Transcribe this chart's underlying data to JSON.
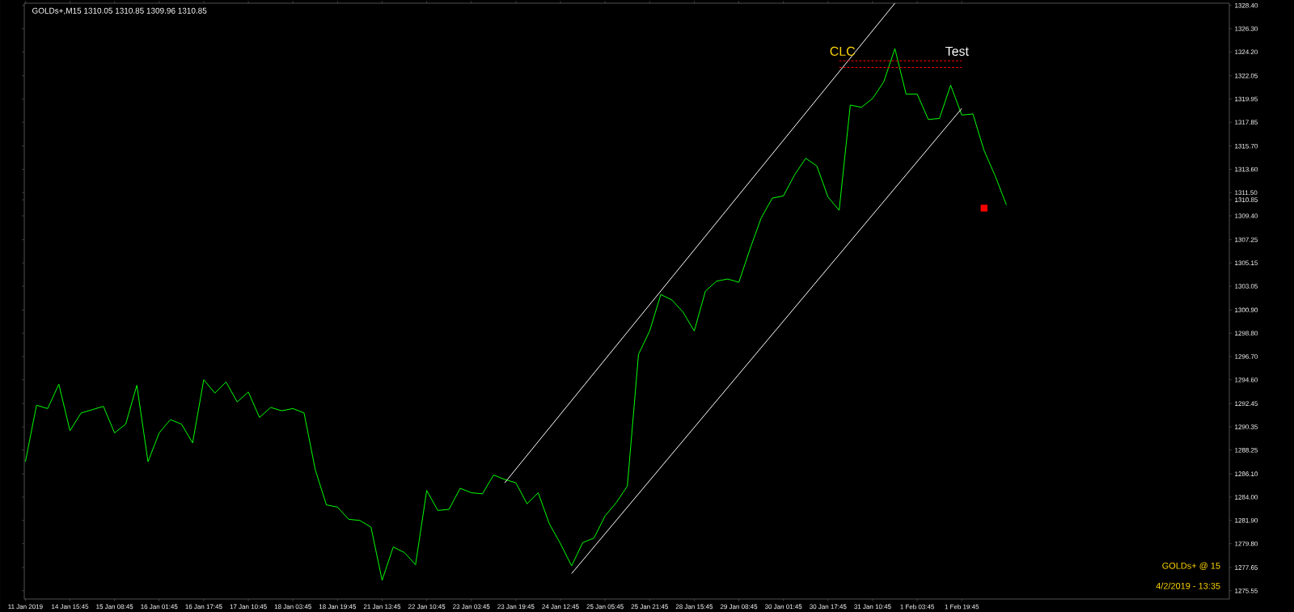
{
  "chart_data": {
    "type": "line",
    "title": "GOLDs+,M15  1310.05 1310.85 1309.96 1310.85",
    "ylim": [
      1274.8,
      1328.6
    ],
    "categories": [
      "11 Jan 2019",
      null,
      null,
      null,
      "14 Jan 15:45",
      null,
      null,
      null,
      "15 Jan 08:45",
      null,
      null,
      null,
      "16 Jan 01:45",
      null,
      null,
      null,
      "16 Jan 17:45",
      null,
      null,
      null,
      "17 Jan 10:45",
      null,
      null,
      null,
      "18 Jan 03:45",
      null,
      null,
      null,
      "18 Jan 19:45",
      null,
      null,
      null,
      "21 Jan 13:45",
      null,
      null,
      null,
      "22 Jan 10:45",
      null,
      null,
      null,
      "23 Jan 03:45",
      null,
      null,
      null,
      "23 Jan 19:45",
      null,
      null,
      null,
      "24 Jan 12:45",
      null,
      null,
      null,
      "25 Jan 05:45",
      null,
      null,
      null,
      "25 Jan 21:45",
      null,
      null,
      null,
      "28 Jan 15:45",
      null,
      null,
      null,
      "29 Jan 08:45",
      null,
      null,
      null,
      "30 Jan 01:45",
      null,
      null,
      null,
      "30 Jan 17:45",
      null,
      null,
      null,
      "31 Jan 10:45",
      null,
      null,
      null,
      "1 Feb 03:45",
      null,
      null,
      null,
      "1 Feb 19:45",
      null,
      null,
      null,
      null,
      null,
      null,
      null,
      null,
      null,
      null,
      null,
      null,
      null,
      null,
      null,
      null,
      null,
      null,
      null,
      null,
      null,
      null,
      null,
      null
    ],
    "yticks": [
      {
        "value": 1328.4,
        "label": "1328.40"
      },
      {
        "value": 1326.3,
        "label": "1326.30"
      },
      {
        "value": 1324.2,
        "label": "1324.20"
      },
      {
        "value": 1322.05,
        "label": "1322.05"
      },
      {
        "value": 1319.95,
        "label": "1319.95"
      },
      {
        "value": 1317.85,
        "label": "1317.85"
      },
      {
        "value": 1315.7,
        "label": "1315.70"
      },
      {
        "value": 1313.6,
        "label": "1313.60"
      },
      {
        "value": 1311.5,
        "label": "1311.50"
      },
      {
        "value": 1310.85,
        "label": "1310.85"
      },
      {
        "value": 1309.4,
        "label": "1309.40"
      },
      {
        "value": 1307.25,
        "label": "1307.25"
      },
      {
        "value": 1305.15,
        "label": "1305.15"
      },
      {
        "value": 1303.05,
        "label": "1303.05"
      },
      {
        "value": 1300.9,
        "label": "1300.90"
      },
      {
        "value": 1298.8,
        "label": "1298.80"
      },
      {
        "value": 1296.7,
        "label": "1296.70"
      },
      {
        "value": 1294.6,
        "label": "1294.60"
      },
      {
        "value": 1292.45,
        "label": "1292.45"
      },
      {
        "value": 1290.35,
        "label": "1290.35"
      },
      {
        "value": 1288.25,
        "label": "1288.25"
      },
      {
        "value": 1286.1,
        "label": "1286.10"
      },
      {
        "value": 1284.0,
        "label": "1284.00"
      },
      {
        "value": 1281.9,
        "label": "1281.90"
      },
      {
        "value": 1279.8,
        "label": "1279.80"
      },
      {
        "value": 1277.65,
        "label": "1277.65"
      },
      {
        "value": 1275.55,
        "label": "1275.55"
      }
    ],
    "series": [
      {
        "color": "#00ff00",
        "values": [
          1287.2,
          1292.3,
          1292.0,
          1294.2,
          1290.0,
          1291.6,
          1291.9,
          1292.2,
          1289.8,
          1290.6,
          1294.1,
          1287.2,
          1289.8,
          1291.0,
          1290.6,
          1288.9,
          1294.6,
          1293.4,
          1294.4,
          1292.6,
          1293.5,
          1291.2,
          1292.1,
          1291.8,
          1292.0,
          1291.6,
          1286.5,
          1283.3,
          1283.1,
          1282.0,
          1281.9,
          1281.3,
          1276.5,
          1279.5,
          1279.0,
          1277.9,
          1284.6,
          1282.8,
          1282.9,
          1284.8,
          1284.4,
          1284.3,
          1286.0,
          1285.6,
          1285.3,
          1283.4,
          1284.4,
          1281.6,
          1279.8,
          1277.8,
          1279.9,
          1280.3,
          1282.3,
          1283.5,
          1285.0,
          1296.9,
          1299.0,
          1302.3,
          1301.8,
          1300.7,
          1299.0,
          1302.6,
          1303.5,
          1303.7,
          1303.4,
          1306.4,
          1309.2,
          1311.0,
          1311.2,
          1313.1,
          1314.6,
          1313.9,
          1311.1,
          1309.9,
          1319.4,
          1319.2,
          1320.0,
          1321.5,
          1324.5,
          1320.4,
          1320.4,
          1318.1,
          1318.2,
          1321.2,
          1318.5,
          1318.6,
          1315.3,
          1313.0,
          1310.4,
          null,
          null,
          null,
          null,
          null,
          null,
          null,
          null,
          null,
          null,
          null,
          null,
          null,
          null,
          null,
          null,
          null,
          null,
          null,
          null
        ]
      },
      {
        "color": "#ffffff",
        "values": [
          null,
          null,
          null,
          null,
          null,
          null,
          null,
          null,
          null,
          null,
          null,
          null,
          null,
          null,
          null,
          null,
          null,
          null,
          null,
          null,
          null,
          null,
          null,
          null,
          null,
          null,
          null,
          null,
          null,
          null,
          null,
          null,
          null,
          null,
          null,
          null,
          null,
          null,
          null,
          null,
          null,
          null,
          null,
          1285.3,
          null,
          null,
          null,
          null,
          null,
          null,
          null,
          null,
          null,
          null,
          null,
          null,
          null,
          null,
          null,
          null,
          null,
          null,
          null,
          null,
          null,
          null,
          null,
          null,
          null,
          null,
          null,
          null,
          null,
          null,
          null,
          null,
          null,
          null,
          1328.6,
          null,
          null,
          null,
          null,
          null,
          null,
          null,
          null,
          null,
          null,
          null,
          null,
          null,
          null,
          null,
          null,
          null,
          null,
          null,
          null,
          null,
          null,
          null,
          null,
          null,
          null,
          null,
          null,
          null,
          null
        ]
      },
      {
        "color": "#ffffff",
        "values": [
          null,
          null,
          null,
          null,
          null,
          null,
          null,
          null,
          null,
          null,
          null,
          null,
          null,
          null,
          null,
          null,
          null,
          null,
          null,
          null,
          null,
          null,
          null,
          null,
          null,
          null,
          null,
          null,
          null,
          null,
          null,
          null,
          null,
          null,
          null,
          null,
          null,
          null,
          null,
          null,
          null,
          null,
          null,
          null,
          null,
          null,
          null,
          null,
          null,
          1277.1,
          null,
          null,
          null,
          null,
          null,
          null,
          null,
          null,
          null,
          null,
          null,
          null,
          null,
          null,
          null,
          null,
          null,
          null,
          null,
          null,
          null,
          null,
          null,
          null,
          null,
          null,
          null,
          null,
          null,
          null,
          null,
          null,
          null,
          null,
          1319.1,
          null,
          null,
          null,
          null,
          null,
          null,
          null,
          null,
          null,
          null,
          null,
          null,
          null,
          null,
          null,
          null,
          null,
          null,
          null,
          null,
          null,
          null,
          null,
          null
        ]
      },
      {
        "color": "#ff0000",
        "line_style": "dashed",
        "values": [
          null,
          null,
          null,
          null,
          null,
          null,
          null,
          null,
          null,
          null,
          null,
          null,
          null,
          null,
          null,
          null,
          null,
          null,
          null,
          null,
          null,
          null,
          null,
          null,
          null,
          null,
          null,
          null,
          null,
          null,
          null,
          null,
          null,
          null,
          null,
          null,
          null,
          null,
          null,
          null,
          null,
          null,
          null,
          null,
          null,
          null,
          null,
          null,
          null,
          null,
          null,
          null,
          null,
          null,
          null,
          null,
          null,
          null,
          null,
          null,
          null,
          null,
          null,
          null,
          null,
          null,
          null,
          null,
          null,
          null,
          null,
          null,
          null,
          1323.4,
          null,
          null,
          null,
          null,
          null,
          null,
          null,
          null,
          null,
          null,
          1323.4,
          null,
          null,
          null,
          null,
          null,
          null,
          null,
          null,
          null,
          null,
          null,
          null,
          null,
          null,
          null,
          null,
          null,
          null,
          null,
          null,
          null,
          null,
          null,
          null
        ]
      },
      {
        "color": "#ff0000",
        "line_style": "dashed",
        "values": [
          null,
          null,
          null,
          null,
          null,
          null,
          null,
          null,
          null,
          null,
          null,
          null,
          null,
          null,
          null,
          null,
          null,
          null,
          null,
          null,
          null,
          null,
          null,
          null,
          null,
          null,
          null,
          null,
          null,
          null,
          null,
          null,
          null,
          null,
          null,
          null,
          null,
          null,
          null,
          null,
          null,
          null,
          null,
          null,
          null,
          null,
          null,
          null,
          null,
          null,
          null,
          null,
          null,
          null,
          null,
          null,
          null,
          null,
          null,
          null,
          null,
          null,
          null,
          null,
          null,
          null,
          null,
          null,
          null,
          null,
          null,
          null,
          null,
          1322.8,
          null,
          null,
          null,
          null,
          null,
          null,
          null,
          null,
          null,
          null,
          1322.8,
          null,
          null,
          null,
          null,
          null,
          null,
          null,
          null,
          null,
          null,
          null,
          null,
          null,
          null,
          null,
          null,
          null,
          null,
          null,
          null,
          null,
          null,
          null,
          null
        ]
      },
      {
        "type": "scatter",
        "marker": "square",
        "color": "#ff0000",
        "values": [
          null,
          null,
          null,
          null,
          null,
          null,
          null,
          null,
          null,
          null,
          null,
          null,
          null,
          null,
          null,
          null,
          null,
          null,
          null,
          null,
          null,
          null,
          null,
          null,
          null,
          null,
          null,
          null,
          null,
          null,
          null,
          null,
          null,
          null,
          null,
          null,
          null,
          null,
          null,
          null,
          null,
          null,
          null,
          null,
          null,
          null,
          null,
          null,
          null,
          null,
          null,
          null,
          null,
          null,
          null,
          null,
          null,
          null,
          null,
          null,
          null,
          null,
          null,
          null,
          null,
          null,
          null,
          null,
          null,
          null,
          null,
          null,
          null,
          null,
          null,
          null,
          null,
          null,
          null,
          null,
          null,
          null,
          null,
          null,
          null,
          null,
          1310.1,
          null,
          null,
          null,
          null,
          null,
          null,
          null,
          null,
          null,
          null,
          null,
          null,
          null,
          null,
          null,
          null,
          null,
          null,
          null,
          null,
          null,
          null
        ]
      }
    ],
    "annotations": [
      "CLC",
      "Test",
      "GOLDs+ @ 15",
      "4/2/2019 - 13:35"
    ]
  }
}
